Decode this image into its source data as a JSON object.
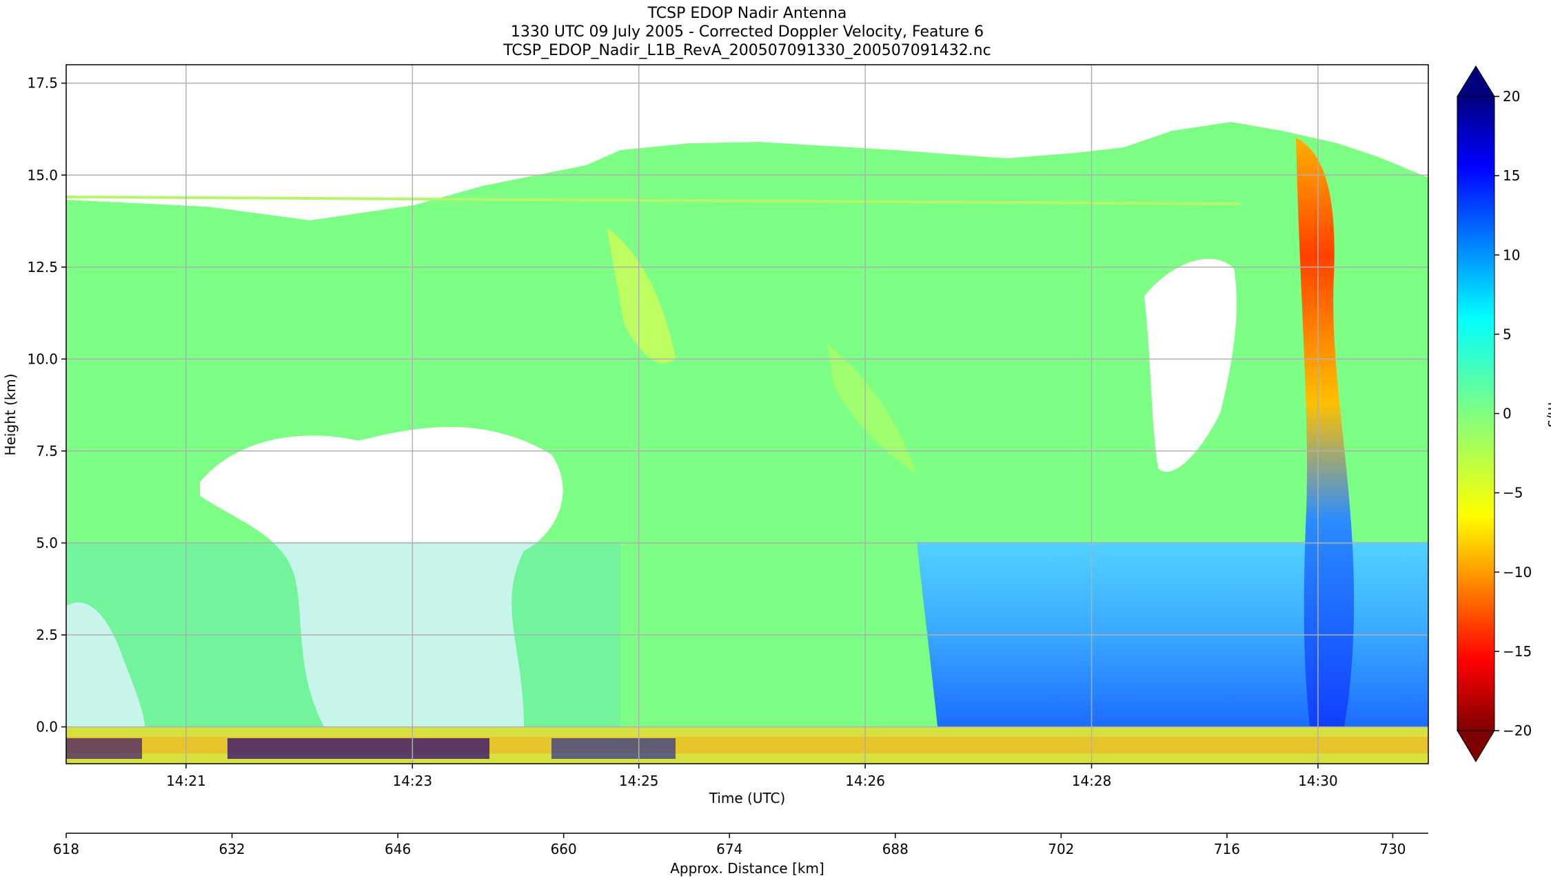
{
  "title_lines": [
    "TCSP EDOP Nadir Antenna",
    "1330 UTC 09 July 2005 - Corrected Doppler Velocity, Feature 6",
    "TCSP_EDOP_Nadir_L1B_RevA_200507091330_200507091432.nc"
  ],
  "colors": {
    "background": "#ffffff",
    "grid": "#b0b0b0",
    "axis": "#000000",
    "colormap": "jet"
  },
  "chart_data": {
    "type": "heatmap",
    "subtype": "radar time-height curtain",
    "xlabel": "Time (UTC)",
    "ylabel": "Height (km)",
    "x2label": "Approx. Distance [km]",
    "colorbar_label": "m/s",
    "ylim": [
      -1.0,
      18.0
    ],
    "yticks": [
      0.0,
      2.5,
      5.0,
      7.5,
      10.0,
      12.5,
      15.0,
      17.5
    ],
    "ytick_labels": [
      "0.0",
      "2.5",
      "5.0",
      "7.5",
      "10.0",
      "12.5",
      "15.0",
      "17.5"
    ],
    "xticks": [
      "14:21",
      "14:23",
      "14:25",
      "14:26",
      "14:28",
      "14:30"
    ],
    "x2lim": [
      618,
      733
    ],
    "x2ticks": [
      618,
      632,
      646,
      660,
      674,
      688,
      702,
      716,
      730
    ],
    "x2tick_labels": [
      "618",
      "632",
      "646",
      "660",
      "674",
      "688",
      "702",
      "716",
      "730"
    ],
    "colorbar": {
      "range": [
        -20,
        20
      ],
      "ticks": [
        20,
        15,
        10,
        5,
        0,
        -5,
        -10,
        -15,
        -20
      ],
      "tick_labels": [
        "20",
        "15",
        "10",
        "5",
        "0",
        "−5",
        "−10",
        "−15",
        "−20"
      ],
      "extend": "both",
      "reversed": true
    },
    "grid": true,
    "features": {
      "low_level_updraft_band_km": [
        0.0,
        5.0
      ],
      "anvil_top_km": 15.0,
      "strong_convective_core_distance_km": [
        718,
        728
      ]
    }
  }
}
